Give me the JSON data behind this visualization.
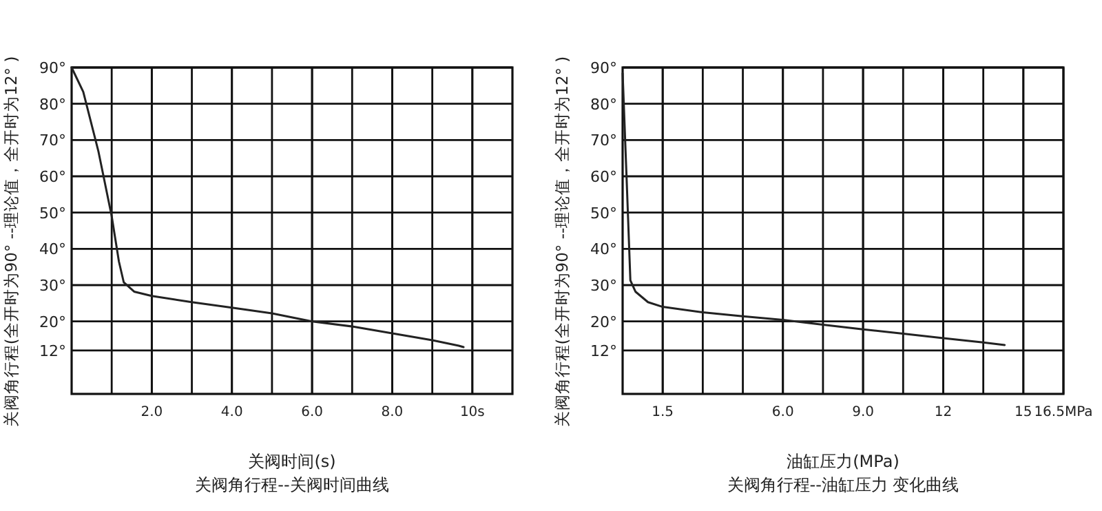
{
  "chart_data": [
    {
      "type": "line",
      "title": "关阀角行程--关阀时间曲线",
      "xlabel": "关阀时间(s)",
      "ylabel": "关阀角行程(全开时为90°  --理论值，全开时为12° )",
      "xlim": [
        0,
        11
      ],
      "ylim": [
        0,
        90
      ],
      "xticks": [
        {
          "value": 2,
          "label": "2.0"
        },
        {
          "value": 4,
          "label": "4.0"
        },
        {
          "value": 6,
          "label": "6.0"
        },
        {
          "value": 8,
          "label": "8.0"
        },
        {
          "value": 10,
          "label": "10s"
        }
      ],
      "yticks": [
        {
          "value": 12,
          "label": "12°"
        },
        {
          "value": 20,
          "label": "20°"
        },
        {
          "value": 30,
          "label": "30°"
        },
        {
          "value": 40,
          "label": "40°"
        },
        {
          "value": 50,
          "label": "50°"
        },
        {
          "value": 60,
          "label": "60°"
        },
        {
          "value": 70,
          "label": "70°"
        },
        {
          "value": 80,
          "label": "80°"
        },
        {
          "value": 90,
          "label": "90°"
        }
      ],
      "grid": true,
      "marker": "none",
      "line_style": "solid",
      "series": [
        {
          "color": "#222222",
          "x": [
            0,
            0.29,
            0.67,
            1.0,
            1.18,
            1.3,
            1.56,
            2.0,
            3,
            4,
            5,
            6,
            7,
            8,
            9,
            9.66,
            9.78
          ],
          "values": [
            90,
            83.3,
            66.8,
            49,
            36.5,
            30.8,
            28.2,
            27,
            25.3,
            23.8,
            22.2,
            20,
            18.6,
            16.7,
            14.8,
            13.3,
            12.9
          ]
        }
      ]
    },
    {
      "type": "line",
      "title": "关阀角行程--油缸压力 变化曲线",
      "xlabel": "油缸压力(MPa)",
      "ylabel": "关阀角行程(全开时为90°  --理论值，全开时为12° )",
      "xlim": [
        0,
        16.5
      ],
      "ylim": [
        0,
        90
      ],
      "xticks": [
        1.5,
        {
          "value": 6,
          "label": "6.0"
        },
        {
          "value": 9,
          "label": "9.0"
        },
        12,
        15,
        {
          "value": 16.5,
          "label": "16.5MPa"
        }
      ],
      "yticks": [
        {
          "value": 12,
          "label": "12°"
        },
        {
          "value": 20,
          "label": "20°"
        },
        {
          "value": 30,
          "label": "30°"
        },
        {
          "value": 40,
          "label": "40°"
        },
        {
          "value": 50,
          "label": "50°"
        },
        {
          "value": 60,
          "label": "60°"
        },
        {
          "value": 70,
          "label": "70°"
        },
        {
          "value": 80,
          "label": "80°"
        },
        {
          "value": 90,
          "label": "90°"
        }
      ],
      "grid": true,
      "marker": "none",
      "line_style": "solid",
      "series": [
        {
          "color": "#222222",
          "x": [
            0,
            0.15,
            0.29,
            0.48,
            0.95,
            1.5,
            3,
            4.5,
            6,
            7.5,
            9,
            10.5,
            12,
            13.5,
            14.3
          ],
          "values": [
            88.4,
            59.2,
            31.3,
            28.2,
            25.3,
            24,
            22.5,
            21.4,
            20.4,
            19.1,
            17.8,
            16.6,
            15.4,
            14.2,
            13.5
          ]
        }
      ]
    }
  ]
}
